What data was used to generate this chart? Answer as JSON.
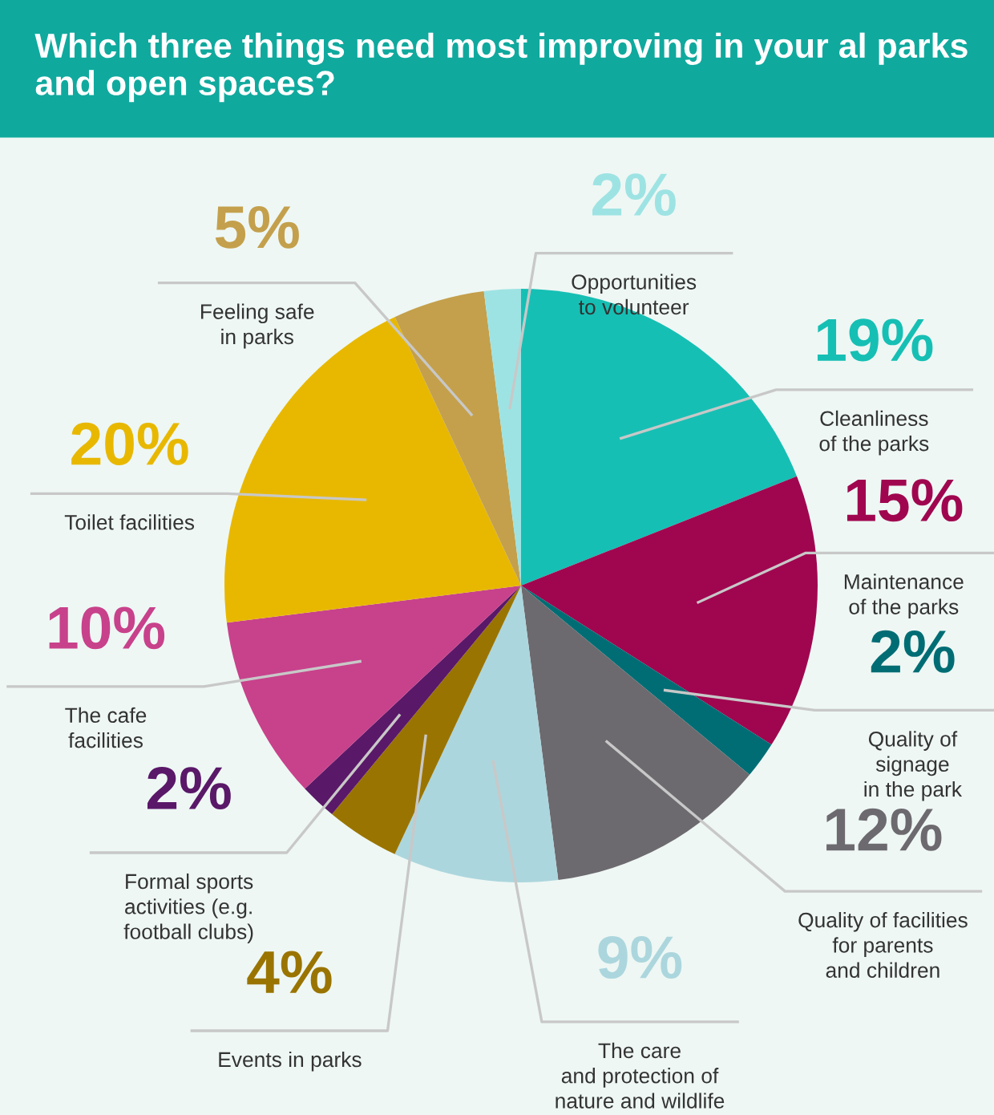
{
  "chart_data": {
    "type": "pie",
    "title": "Which three things need most improving in your al parks and open spaces?",
    "categories": [
      "Cleanliness\nof the parks",
      "Maintenance\nof the parks",
      "Quality of\nsignage\nin the park",
      "Quality of facilities\nfor parents\nand children",
      "The care\nand protection of\nnature and wildlife",
      "Events in parks",
      "Formal sports\nactivities (e.g.\nfootball clubs)",
      "The cafe\nfacilities",
      "Toilet facilities",
      "Feeling safe\nin parks",
      "Opportunities\nto volunteer"
    ],
    "values": [
      19,
      15,
      2,
      12,
      9,
      4,
      2,
      10,
      20,
      5,
      2
    ],
    "colors": [
      "#16bfb4",
      "#a0064f",
      "#006d74",
      "#6d6a6f",
      "#acd6dd",
      "#9a7400",
      "#5a1868",
      "#c8418b",
      "#e8b800",
      "#c4a04c",
      "#9ee3e3"
    ],
    "value_labels": [
      "19%",
      "15%",
      "2%",
      "12%",
      "9%",
      "4%",
      "2%",
      "10%",
      "20%",
      "5%",
      "2%"
    ]
  }
}
